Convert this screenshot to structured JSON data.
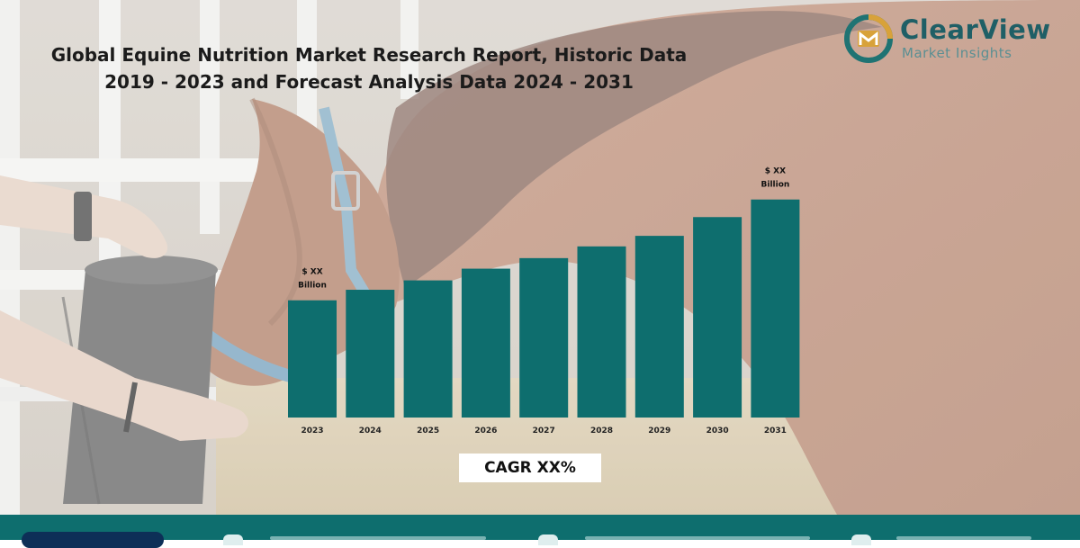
{
  "report": {
    "title_line1": "Global Equine Nutrition Market Research Report, Historic Data",
    "title_line2": "2019 - 2023 and Forecast Analysis Data 2024 - 2031"
  },
  "logo": {
    "name": "ClearView",
    "tagline": "Market Insights"
  },
  "chart_data": {
    "type": "bar",
    "categories": [
      "2023",
      "2024",
      "2025",
      "2026",
      "2027",
      "2028",
      "2029",
      "2030",
      "2031"
    ],
    "values": [
      1.0,
      1.09,
      1.17,
      1.27,
      1.36,
      1.46,
      1.55,
      1.71,
      1.86
    ],
    "title": "",
    "xlabel": "",
    "ylabel": "",
    "ylim": [
      0,
      1.95
    ],
    "grid": false,
    "legend": "none",
    "bar_color": "#0e6e6e",
    "annotations": [
      {
        "category": "2023",
        "line1": "$ XX",
        "line2": "Billion"
      },
      {
        "category": "2031",
        "line1": "$ XX",
        "line2": "Billion"
      }
    ],
    "cagr_label": "CAGR XX%"
  },
  "colors": {
    "accent": "#0e6e6e",
    "footer": "#0e6e6e",
    "title_text": "#1b1b1b"
  }
}
